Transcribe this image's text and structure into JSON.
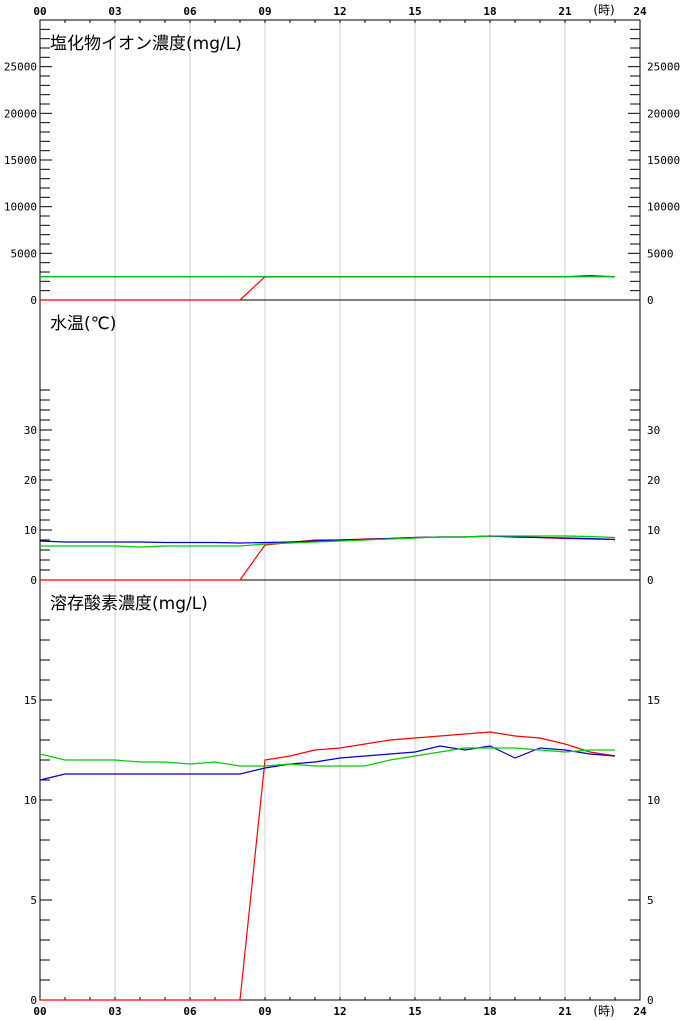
{
  "x_axis": {
    "top_ticks": [
      "00",
      "03",
      "06",
      "09",
      "12",
      "15",
      "18",
      "21",
      "24"
    ],
    "bottom_ticks": [
      "00",
      "03",
      "06",
      "09",
      "12",
      "15",
      "18",
      "21",
      "24"
    ],
    "unit": "(時)"
  },
  "chart_data": [
    {
      "type": "line",
      "title": "塩化物イオン濃度(mg/L)",
      "y_ticks": [
        "0",
        "5000",
        "10000",
        "15000",
        "20000",
        "25000"
      ],
      "ylim": [
        0,
        30000
      ],
      "x": [
        0,
        1,
        2,
        3,
        4,
        5,
        6,
        7,
        8,
        9,
        10,
        11,
        12,
        13,
        14,
        15,
        16,
        17,
        18,
        19,
        20,
        21,
        22,
        23
      ],
      "series": [
        {
          "color": "#ff0000",
          "values": [
            0,
            0,
            0,
            0,
            0,
            0,
            0,
            0,
            0,
            2500,
            2500,
            2500,
            2500,
            2500,
            2500,
            2500,
            2500,
            2500,
            2500,
            2500,
            2500,
            2500,
            2500,
            2500
          ]
        },
        {
          "color": "#0000cc",
          "values": [
            2500,
            2500,
            2500,
            2500,
            2500,
            2500,
            2500,
            2500,
            2500,
            2500,
            2500,
            2500,
            2500,
            2500,
            2500,
            2500,
            2500,
            2500,
            2500,
            2500,
            2500,
            2500,
            2600,
            2500
          ]
        },
        {
          "color": "#00cc00",
          "values": [
            2500,
            2500,
            2500,
            2500,
            2500,
            2500,
            2500,
            2500,
            2500,
            2500,
            2500,
            2500,
            2500,
            2500,
            2500,
            2500,
            2500,
            2500,
            2500,
            2500,
            2500,
            2500,
            2500,
            2500
          ]
        }
      ]
    },
    {
      "type": "line",
      "title": "水温(℃)",
      "y_ticks": [
        "0",
        "10",
        "20",
        "30"
      ],
      "ylim": [
        0,
        56
      ],
      "x": [
        0,
        1,
        2,
        3,
        4,
        5,
        6,
        7,
        8,
        9,
        10,
        11,
        12,
        13,
        14,
        15,
        16,
        17,
        18,
        19,
        20,
        21,
        22,
        23
      ],
      "series": [
        {
          "color": "#ff0000",
          "values": [
            0,
            0,
            0,
            0,
            0,
            0,
            0,
            0,
            0,
            7,
            7.5,
            8,
            8,
            8.2,
            8.3,
            8.5,
            8.6,
            8.6,
            8.8,
            8.6,
            8.5,
            8.3,
            8.2,
            8.1
          ]
        },
        {
          "color": "#0000cc",
          "values": [
            7.8,
            7.6,
            7.6,
            7.6,
            7.6,
            7.5,
            7.5,
            7.5,
            7.4,
            7.5,
            7.6,
            7.8,
            8,
            8.1,
            8.3,
            8.5,
            8.6,
            8.6,
            8.8,
            8.6,
            8.5,
            8.4,
            8.3,
            8.1
          ]
        },
        {
          "color": "#00cc00",
          "values": [
            6.8,
            6.8,
            6.8,
            6.8,
            6.6,
            6.8,
            6.8,
            6.8,
            6.8,
            7.2,
            7.4,
            7.6,
            7.8,
            8,
            8.2,
            8.4,
            8.6,
            8.6,
            8.8,
            8.8,
            8.8,
            8.8,
            8.7,
            8.5
          ]
        }
      ]
    },
    {
      "type": "line",
      "title": "溶存酸素濃度(mg/L)",
      "y_ticks": [
        "0",
        "5",
        "10",
        "15"
      ],
      "ylim": [
        0,
        21
      ],
      "x": [
        0,
        1,
        2,
        3,
        4,
        5,
        6,
        7,
        8,
        9,
        10,
        11,
        12,
        13,
        14,
        15,
        16,
        17,
        18,
        19,
        20,
        21,
        22,
        23
      ],
      "series": [
        {
          "color": "#ff0000",
          "values": [
            0,
            0,
            0,
            0,
            0,
            0,
            0,
            0,
            0,
            12,
            12.2,
            12.5,
            12.6,
            12.8,
            13,
            13.1,
            13.2,
            13.3,
            13.4,
            13.2,
            13.1,
            12.8,
            12.4,
            12.2
          ]
        },
        {
          "color": "#0000cc",
          "values": [
            11,
            11.3,
            11.3,
            11.3,
            11.3,
            11.3,
            11.3,
            11.3,
            11.3,
            11.6,
            11.8,
            11.9,
            12.1,
            12.2,
            12.3,
            12.4,
            12.7,
            12.5,
            12.7,
            12.1,
            12.6,
            12.5,
            12.3,
            12.2
          ]
        },
        {
          "color": "#00cc00",
          "values": [
            12.3,
            12,
            12,
            12,
            11.9,
            11.9,
            11.8,
            11.9,
            11.7,
            11.7,
            11.8,
            11.7,
            11.7,
            11.7,
            12,
            12.2,
            12.4,
            12.6,
            12.6,
            12.6,
            12.5,
            12.4,
            12.5,
            12.5
          ]
        }
      ]
    }
  ]
}
